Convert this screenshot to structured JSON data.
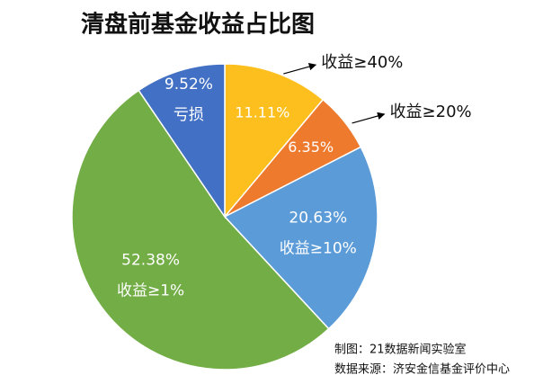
{
  "chart_data": {
    "type": "pie",
    "title": "清盘前基金收益占比图",
    "categories": [
      "收益≥40%",
      "收益≥20%",
      "收益≥10%",
      "收益≥1%",
      "亏损"
    ],
    "values": [
      11.11,
      6.35,
      20.63,
      52.38,
      9.52
    ],
    "value_labels": [
      "11.11%",
      "6.35%",
      "20.63%",
      "52.38%",
      "9.52%"
    ],
    "colors": [
      "#fcbf1e",
      "#ee7a2e",
      "#5b9bd8",
      "#72ad45",
      "#4270c4"
    ],
    "footnotes": [
      "制图：21数据新闻实验室",
      "数据来源：济安金信基金评价中心"
    ]
  }
}
